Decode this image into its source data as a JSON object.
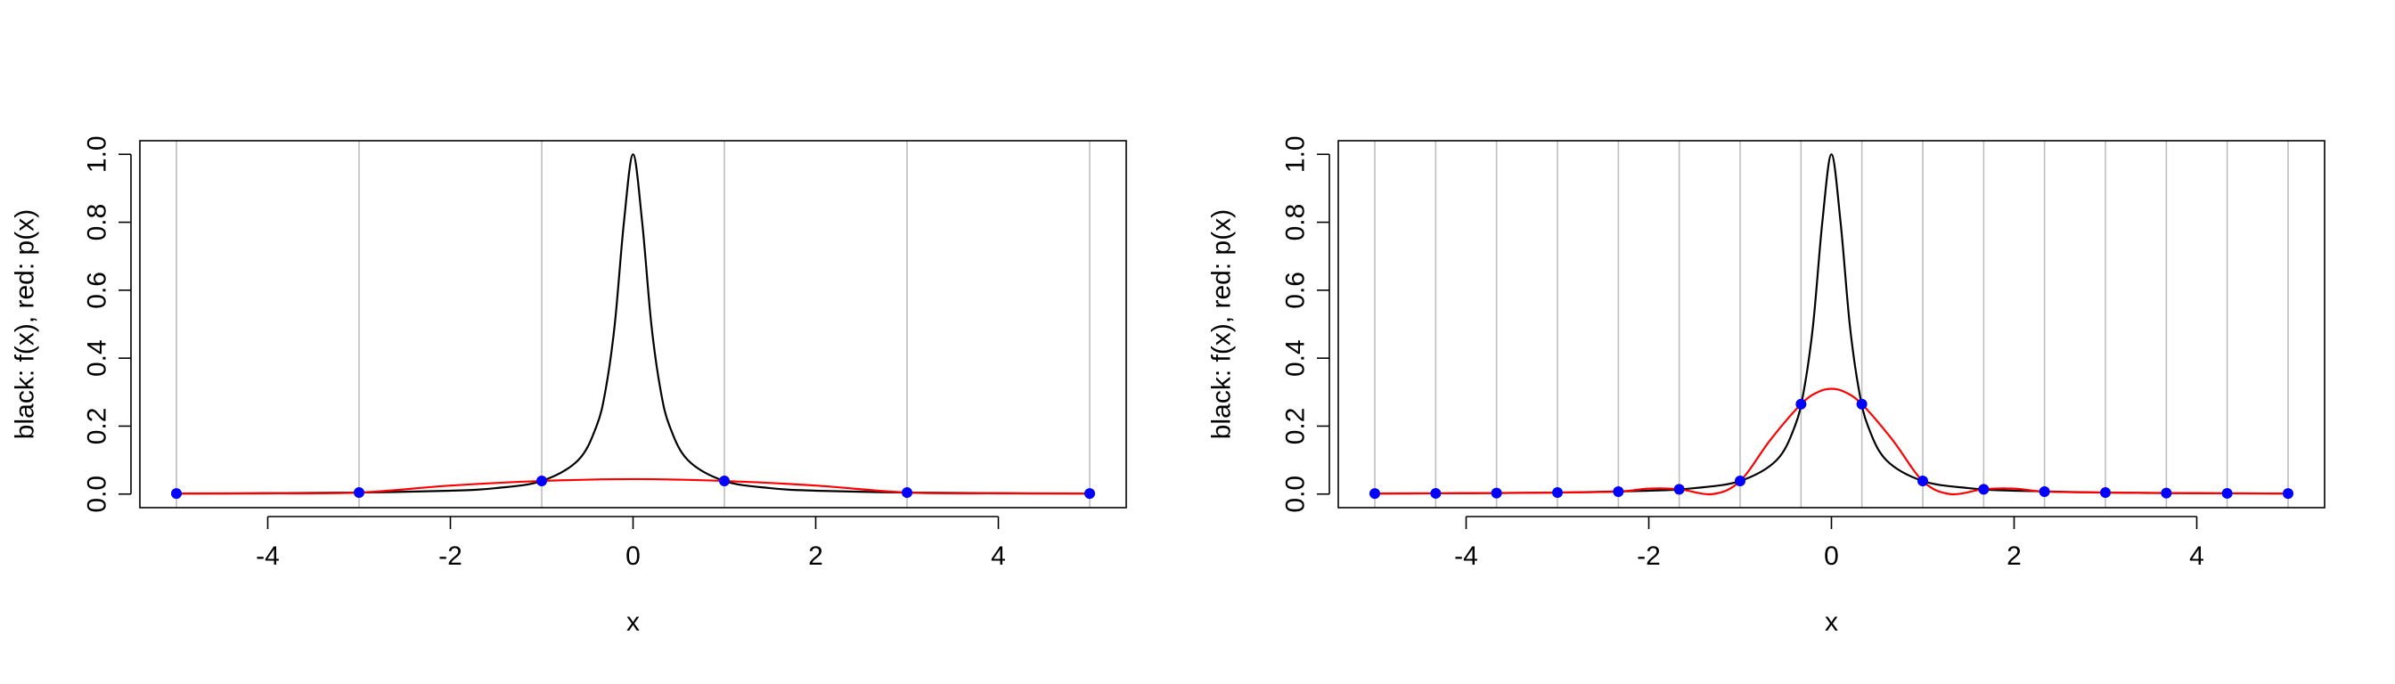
{
  "chart_data": [
    {
      "type": "line",
      "xlabel": "x",
      "ylabel": "black: f(x), red: p(x)",
      "xlim": [
        -5.4,
        5.4
      ],
      "ylim": [
        -0.04,
        1.04
      ],
      "xticks": [
        -4,
        -2,
        0,
        2,
        4
      ],
      "xtick_labels": [
        "-4",
        "-2",
        "0",
        "2",
        "4"
      ],
      "yticks": [
        0.0,
        0.2,
        0.4,
        0.6,
        0.8,
        1.0
      ],
      "ytick_labels": [
        "0.0",
        "0.2",
        "0.4",
        "0.6",
        "0.8",
        "1.0"
      ],
      "grid_lines_x": [
        -5,
        -3,
        -1,
        1,
        3,
        5
      ],
      "colors": {
        "f": "#000000",
        "p": "#ff0000",
        "nodes": "#0000ff",
        "grid": "#bebebe"
      },
      "series": [
        {
          "function": "1/(1+25*x^2)",
          "color": "#000000",
          "x": [
            -5,
            -4,
            -3,
            -2,
            -1.5,
            -1,
            -0.6,
            -0.4,
            -0.3,
            -0.2,
            -0.1,
            0,
            0.1,
            0.2,
            0.3,
            0.4,
            0.6,
            1,
            1.5,
            2,
            3,
            4,
            5
          ],
          "y": [
            0.0016,
            0.0025,
            0.0044,
            0.0099,
            0.0175,
            0.0385,
            0.1,
            0.2,
            0.3077,
            0.5,
            0.8,
            1.0,
            0.8,
            0.5,
            0.3077,
            0.2,
            0.1,
            0.0385,
            0.0175,
            0.0099,
            0.0044,
            0.0025,
            0.0016
          ]
        },
        {
          "color": "#ff0000",
          "x": [
            -5,
            -4,
            -3,
            -2,
            -1,
            0,
            1,
            2,
            3,
            4,
            5
          ],
          "y": [
            0.0016,
            0.002,
            0.0044,
            0.025,
            0.0385,
            0.044,
            0.0385,
            0.025,
            0.0044,
            0.002,
            0.0016
          ]
        }
      ],
      "points": {
        "color": "#0000ff",
        "x": [
          -5,
          -3,
          -1,
          1,
          3,
          5
        ],
        "y": [
          0.0016,
          0.0044,
          0.0385,
          0.0385,
          0.0044,
          0.0016
        ]
      }
    },
    {
      "type": "line",
      "xlabel": "x",
      "ylabel": "black: f(x), red: p(x)",
      "xlim": [
        -5.4,
        5.4
      ],
      "ylim": [
        -0.04,
        1.04
      ],
      "xticks": [
        -4,
        -2,
        0,
        2,
        4
      ],
      "xtick_labels": [
        "-4",
        "-2",
        "0",
        "2",
        "4"
      ],
      "yticks": [
        0.0,
        0.2,
        0.4,
        0.6,
        0.8,
        1.0
      ],
      "ytick_labels": [
        "0.0",
        "0.2",
        "0.4",
        "0.6",
        "0.8",
        "1.0"
      ],
      "grid_lines_x": [
        -5,
        -4.333,
        -3.667,
        -3,
        -2.333,
        -1.667,
        -1,
        -0.333,
        0.333,
        1,
        1.667,
        2.333,
        3,
        3.667,
        4.333,
        5
      ],
      "colors": {
        "f": "#000000",
        "p": "#ff0000",
        "nodes": "#0000ff",
        "grid": "#bebebe"
      },
      "series": [
        {
          "function": "1/(1+25*x^2)",
          "color": "#000000",
          "x": [
            -5,
            -4,
            -3,
            -2,
            -1.5,
            -1,
            -0.6,
            -0.4,
            -0.3,
            -0.2,
            -0.1,
            0,
            0.1,
            0.2,
            0.3,
            0.4,
            0.6,
            1,
            1.5,
            2,
            3,
            4,
            5
          ],
          "y": [
            0.0016,
            0.0025,
            0.0044,
            0.0099,
            0.0175,
            0.0385,
            0.1,
            0.2,
            0.3077,
            0.5,
            0.8,
            1.0,
            0.8,
            0.5,
            0.3077,
            0.2,
            0.1,
            0.0385,
            0.0175,
            0.0099,
            0.0044,
            0.0025,
            0.0016
          ]
        },
        {
          "color": "#ff0000",
          "x": [
            -5,
            -4.333,
            -3.667,
            -3,
            -2.333,
            -2,
            -1.667,
            -1.3,
            -1,
            -0.667,
            -0.333,
            -0.15,
            0,
            0.15,
            0.333,
            0.667,
            1,
            1.3,
            1.667,
            2,
            2.333,
            3,
            3.667,
            4.333,
            5
          ],
          "y": [
            0.0016,
            0.0021,
            0.003,
            0.0044,
            0.0073,
            0.016,
            0.0142,
            0.0,
            0.0385,
            0.16,
            0.2647,
            0.3,
            0.31,
            0.3,
            0.2647,
            0.16,
            0.0385,
            0.0,
            0.0142,
            0.016,
            0.0073,
            0.0044,
            0.003,
            0.0021,
            0.0016
          ]
        }
      ],
      "points": {
        "color": "#0000ff",
        "x": [
          -5,
          -4.333,
          -3.667,
          -3,
          -2.333,
          -1.667,
          -1,
          -0.333,
          0.333,
          1,
          1.667,
          2.333,
          3,
          3.667,
          4.333,
          5
        ],
        "y": [
          0.0016,
          0.0021,
          0.003,
          0.0044,
          0.0073,
          0.0142,
          0.0385,
          0.2647,
          0.2647,
          0.0385,
          0.0142,
          0.0073,
          0.0044,
          0.003,
          0.0021,
          0.0016
        ]
      }
    }
  ]
}
